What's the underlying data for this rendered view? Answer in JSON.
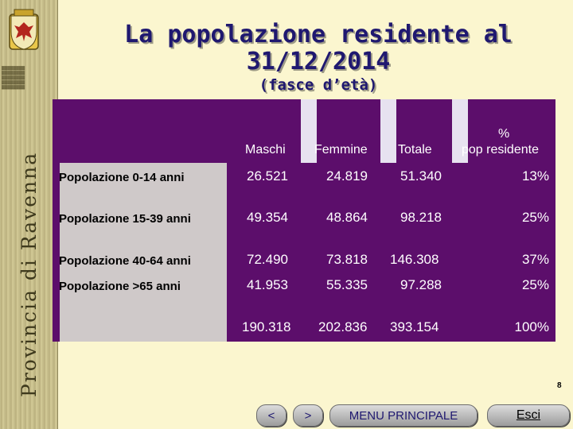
{
  "sidebar": {
    "province_name": "Provincia di Ravenna",
    "crest_icon": "ravenna-crest-icon"
  },
  "title": {
    "line1": "La popolazione residente al",
    "line2": "31/12/2014",
    "subtitle": "(fasce d’età)"
  },
  "table": {
    "headers": {
      "maschi": "Maschi",
      "femmine": "Femmine",
      "totale": "Totale",
      "pct_line1": "%",
      "pct_line2": "pop residente"
    },
    "rows": [
      {
        "label": "Popolazione 0-14 anni",
        "maschi": "26.521",
        "femmine": "24.819",
        "totale": "51.340",
        "pct": "13%"
      },
      {
        "label": "Popolazione 15-39 anni",
        "maschi": "49.354",
        "femmine": "48.864",
        "totale": "98.218",
        "pct": "25%"
      },
      {
        "label": "Popolazione 40-64 anni",
        "maschi": "72.490",
        "femmine": "73.818",
        "totale": "146.308",
        "pct": "37%"
      },
      {
        "label": "Popolazione >65 anni",
        "maschi": "41.953",
        "femmine": "55.335",
        "totale": "97.288",
        "pct": "25%"
      }
    ],
    "totals": {
      "maschi": "190.318",
      "femmine": "202.836",
      "totale": "393.154",
      "pct": "100%"
    }
  },
  "page_number": "8",
  "nav": {
    "prev": "<",
    "next": ">",
    "menu": "MENU PRINCIPALE",
    "exit": "Esci"
  },
  "colors": {
    "table_bg": "#5c0e6b",
    "label_col": "#cfc9c9",
    "title": "#1f1870",
    "page_bg": "#fbf6cf"
  }
}
